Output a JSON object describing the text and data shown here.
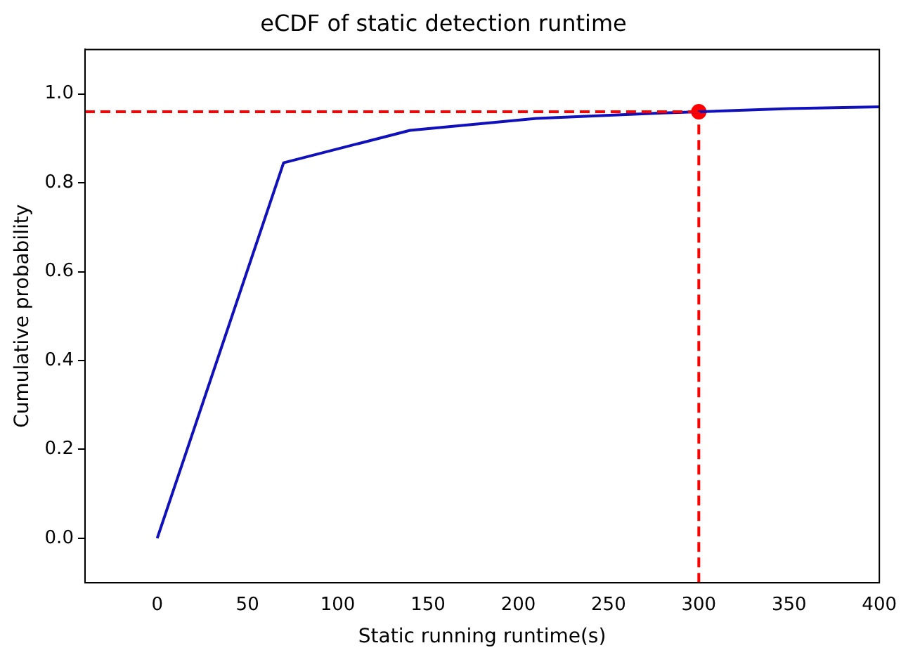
{
  "chart_data": {
    "type": "line",
    "title": "eCDF of static detection runtime",
    "xlabel": "Static running runtime(s)",
    "ylabel": "Cumulative probability",
    "series": [
      {
        "color": "#1111bb",
        "x": [
          0,
          70,
          140,
          210,
          280,
          350,
          400
        ],
        "values": [
          0,
          0.845,
          0.918,
          0.945,
          0.957,
          0.967,
          0.971
        ]
      },
      {
        "type": "scatter",
        "color": "#ff0000",
        "x": [
          300
        ],
        "values": [
          0.96
        ],
        "marker": "circle"
      }
    ],
    "ref_lines": [
      {
        "axis": "y",
        "value": 0.96,
        "color": "#ff0000",
        "line_style": "dashed"
      },
      {
        "axis": "x",
        "value": 300,
        "color": "#ff0000",
        "line_style": "dashed"
      }
    ],
    "xlim": [
      -40,
      400
    ],
    "xticks": [
      0,
      50,
      100,
      150,
      200,
      250,
      300,
      350,
      400
    ],
    "ylim": [
      -0.1,
      1.1
    ],
    "yticks": [
      {
        "value": 0,
        "label": "0.0"
      },
      0.2,
      0.4,
      0.6,
      0.8,
      {
        "value": 1,
        "label": "1.0"
      }
    ],
    "grid": false,
    "legend": false
  }
}
